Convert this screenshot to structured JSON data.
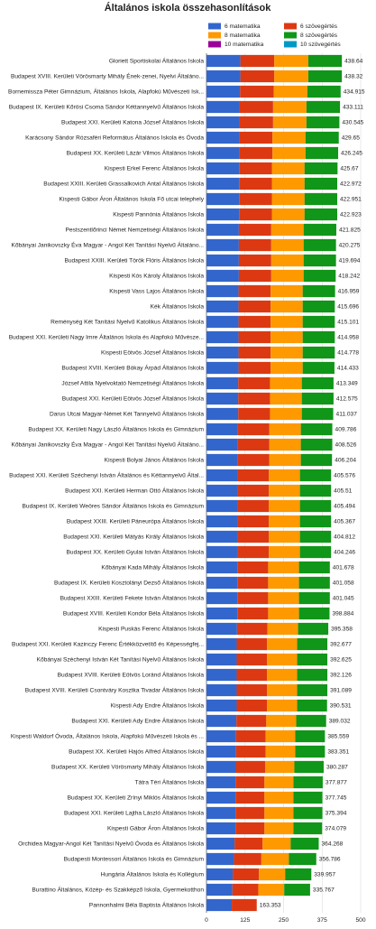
{
  "chart_data": {
    "type": "stacked-bar-horizontal",
    "title": "Általános iskola összehasonlítások",
    "categories": [
      "Gloriett Sportiskolai Általános Iskola",
      "Budapest XVIII. Kerületi Vörösmarty Mihály Ének-zenei, Nyelvi Általáno...",
      "Bornemissza Péter Gimnázium, Általános Iskola, Alapfokú Művészeti Isk...",
      "Budapest IX. Kerületi Kőrösi Csoma Sándor Kéttannyelvű Általános Iskola",
      "Budapest XXI. Kerületi Katona József Általános Iskola",
      "Karácsony Sándor Rózsaféri Református Általános Iskola és Óvoda",
      "Budapest XX. Kerületi Lázár Vilmos Általános Iskola",
      "Kispesti Erkel Ferenc Általános Iskola",
      "Budapest XXIII. Kerületi Grassalkovich Antal Általános Iskola",
      "Kispesti Gábor Áron Általános Iskola Fő utcai telephely",
      "Kispesti Pannónia Általános Iskola",
      "Pestszentlőrinci Német Nemzetiségi Általános Iskola",
      "Kőbányai Janikovszky Éva Magyar - Angol Két Tanítási Nyelvű Általáno...",
      "Budapest XXIII. Kerületi Török Flóris Általános Iskola",
      "Kispesti Kós Károly Általános Iskola",
      "Kispesti Vass Lajos Általános Iskola",
      "Kék Általános Iskola",
      "Reménység Két Tanítási Nyelvű Katolikus Általános Iskola",
      "Budapest XXI. Kerületi Nagy Imre Általános Iskola és Alapfokú Művésze...",
      "Kispesti Eötvös József Általános Iskola",
      "Budapest XVIII. Kerületi Bókay Árpád Általános Iskola",
      "József Attila Nyelvoktató Nemzetiségi Általános Iskola",
      "Budapest XXI. Kerületi Eötvös József Általános Iskola",
      "Darus Utcai Magyar-Német Két Tannyelvű Általános Iskola",
      "Budapest XX. Kerületi Nagy László Általános Iskola és Gimnázium",
      "Kőbányai Janikovszky Éva Magyar - Angol Két Tanítási Nyelvű Általáno...",
      "Kispesti Bolyai János Általános Iskola",
      "Budapest XXI. Kerületi Széchenyi István Általános és Kéttannyelvű Által...",
      "Budapest XXI. Kerületi Herman Ottó Általános Iskola",
      "Budapest IX. Kerületi Weöres Sándor Általános Iskola és Gimnázium",
      "Budapest XXIII. Kerületi Páneurópa Általános Iskola",
      "Budapest XXI. Kerületi Mátyás Király Általános Iskola",
      "Budapest XX. Kerületi Gyulai István Általános Iskola",
      "Kőbányai Kada Mihály Általános Iskola",
      "Budapest IX. Kerületi Kosztolányi Dezső Általános Iskola",
      "Budapest XXIII. Kerületi Fekete István Általános Iskola",
      "Budapest XVIII. Kerületi Kondor Béla Általános Iskola",
      "Kispesti Puskás Ferenc Általános Iskola",
      "Budapest XXI. Kerületi Kazinczy Ferenc Értékközvetítő és Képességfej...",
      "Kőbányai Széchenyi István Két Tanítási Nyelvű Általános Iskola",
      "Budapest XVIII. Kerületi Eötvös Loránd Általános Iskola",
      "Budapest XVIII. Kerületi Csontváry Kosztka Tivadar Általános Iskola",
      "Kispesti Ady Endre Általános Iskola",
      "Budapest XXI. Kerületi Ady Endre Általános Iskola",
      "Kispesti Waldorf Óvoda, Általános Iskola, Alapfokú Művészeti Iskola és ...",
      "Budapest XX. Kerületi Hajós Alfréd Általános Iskola",
      "Budapest XX. Kerületi Vörösmarty Mihály Általános Iskola",
      "Tátra Téri Általános Iskola",
      "Budapest XX. Kerületi Zrínyi Miklós Általános Iskola",
      "Budapest XXI. Kerületi Lajtha László Általános Iskola",
      "Kispesti Gábor Áron Általános Iskola",
      "Orchidea Magyar-Angol Két Tanítási Nyelvű Óvoda és Általános Iskola",
      "Budapesti Montessori Általános Iskola és Gimnázium",
      "Hungária Általános Iskola és Kollégium",
      "Burattino Általános, Közép- és Szakképző Iskola, Gyermekotthon",
      "Pannonhalmi Béla Baptista Általános Iskola"
    ],
    "series": [
      {
        "name": "6 matematika",
        "color": "#3366cc",
        "values": [
          110,
          110,
          109,
          108,
          108,
          107,
          107,
          106,
          106,
          106,
          106,
          105,
          105,
          105,
          105,
          104,
          104,
          104,
          104,
          104,
          104,
          103,
          103,
          103,
          102,
          102,
          102,
          101,
          101,
          101,
          101,
          101,
          101,
          100,
          100,
          100,
          100,
          99,
          98,
          98,
          98,
          98,
          98,
          97,
          96,
          96,
          95,
          94,
          94,
          94,
          94,
          91,
          89,
          85,
          84,
          82
        ]
      },
      {
        "name": "6 szövegértés",
        "color": "#dc3912",
        "values": [
          110,
          110,
          109,
          108,
          108,
          107,
          107,
          106,
          106,
          106,
          106,
          105,
          105,
          105,
          105,
          104,
          104,
          104,
          104,
          104,
          104,
          103,
          103,
          103,
          102,
          102,
          102,
          101,
          101,
          101,
          101,
          101,
          101,
          100,
          100,
          100,
          100,
          99,
          98,
          98,
          98,
          98,
          98,
          97,
          96,
          96,
          95,
          94,
          94,
          94,
          94,
          91,
          89,
          85,
          84,
          81
        ]
      },
      {
        "name": "8 matematika",
        "color": "#ff9900",
        "values": [
          110,
          110,
          109,
          108,
          108,
          107,
          107,
          106,
          106,
          106,
          106,
          105,
          105,
          105,
          105,
          104,
          104,
          104,
          104,
          104,
          104,
          103,
          103,
          103,
          102,
          102,
          102,
          101,
          101,
          101,
          101,
          101,
          101,
          100,
          100,
          100,
          100,
          99,
          98,
          98,
          98,
          98,
          98,
          97,
          96,
          96,
          95,
          94,
          94,
          94,
          94,
          91,
          89,
          85,
          84,
          null
        ]
      },
      {
        "name": "8 szövegértés",
        "color": "#109618",
        "values": [
          109,
          109,
          108,
          109,
          107,
          108,
          106,
          107,
          106,
          106,
          106,
          106,
          105,
          105,
          104,
          105,
          104,
          104,
          104,
          104,
          103,
          103,
          103,
          102,
          102,
          102,
          101,
          101,
          101,
          101,
          101,
          101,
          101,
          100,
          100,
          100,
          99,
          98,
          98,
          98,
          98,
          98,
          97,
          97,
          96,
          96,
          95,
          95,
          94,
          94,
          93,
          91,
          89,
          85,
          84,
          null
        ]
      },
      {
        "name": "10 matematika",
        "color": "#990099",
        "values": [
          null,
          null,
          null,
          null,
          null,
          null,
          null,
          null,
          null,
          null,
          null,
          null,
          null,
          null,
          null,
          null,
          null,
          null,
          null,
          null,
          null,
          null,
          null,
          null,
          null,
          null,
          null,
          null,
          null,
          null,
          null,
          null,
          null,
          null,
          null,
          null,
          null,
          null,
          null,
          null,
          null,
          null,
          null,
          null,
          null,
          null,
          null,
          null,
          null,
          null,
          null,
          null,
          null,
          null,
          null,
          null
        ]
      },
      {
        "name": "10 szövegértés",
        "color": "#0099c6",
        "values": [
          null,
          null,
          null,
          null,
          null,
          null,
          null,
          null,
          null,
          null,
          null,
          null,
          null,
          null,
          null,
          null,
          null,
          null,
          null,
          null,
          null,
          null,
          null,
          null,
          null,
          null,
          null,
          null,
          null,
          null,
          null,
          null,
          null,
          null,
          null,
          null,
          null,
          null,
          null,
          null,
          null,
          null,
          null,
          null,
          null,
          null,
          null,
          null,
          null,
          null,
          null,
          null,
          null,
          null,
          null,
          null
        ]
      }
    ],
    "totals": [
      438.64,
      438.32,
      434.915,
      433.111,
      430.545,
      429.65,
      426.245,
      425.67,
      422.972,
      422.951,
      422.923,
      421.825,
      420.275,
      419.694,
      418.242,
      416.959,
      415.696,
      415.101,
      414.958,
      414.778,
      414.433,
      413.349,
      412.575,
      411.037,
      409.786,
      408.526,
      406.204,
      405.576,
      405.51,
      405.494,
      405.367,
      404.812,
      404.246,
      401.678,
      401.058,
      401.045,
      398.884,
      395.358,
      392.677,
      392.625,
      392.126,
      391.089,
      390.531,
      389.032,
      385.559,
      383.351,
      380.287,
      377.877,
      377.745,
      375.394,
      374.079,
      364.268,
      356.786,
      339.957,
      335.767,
      163.353
    ],
    "totals_color": "#0099c6",
    "xlim": [
      0,
      500
    ],
    "xticks": [
      0,
      125,
      250,
      375,
      500
    ],
    "grid": true
  }
}
